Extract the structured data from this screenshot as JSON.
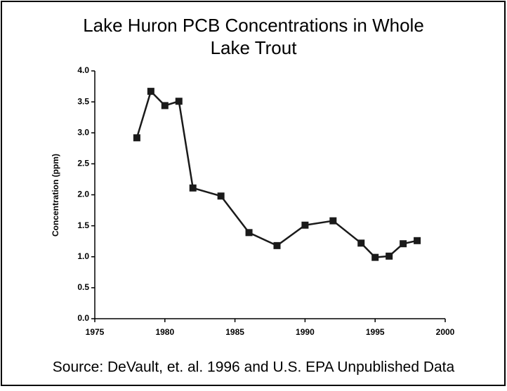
{
  "chart_data": {
    "type": "line",
    "title": [
      "Lake Huron PCB Concentrations in Whole",
      "Lake Trout"
    ],
    "y_label": "Concentration (ppm)",
    "source": "Source: DeVault, et. al. 1996 and U.S. EPA Unpublished Data",
    "x": [
      1978,
      1979,
      1980,
      1981,
      1982,
      1984,
      1986,
      1988,
      1990,
      1992,
      1994,
      1995,
      1996,
      1997,
      1998
    ],
    "series": [
      {
        "color": "#1a1a1a",
        "values": [
          2.92,
          3.67,
          3.44,
          3.51,
          2.11,
          1.98,
          1.39,
          1.18,
          1.51,
          1.58,
          1.22,
          0.99,
          1.01,
          1.21,
          1.26
        ]
      }
    ],
    "xlim": [
      1975,
      2000
    ],
    "xticks": [
      1975,
      1980,
      1985,
      1990,
      1995,
      2000
    ],
    "ylim": [
      0,
      4
    ],
    "yticks": [
      {
        "value": 0,
        "label": "0.0"
      },
      {
        "value": 0.5,
        "label": "0.5"
      },
      {
        "value": 1,
        "label": "1.0"
      },
      {
        "value": 1.5,
        "label": "1.5"
      },
      {
        "value": 2,
        "label": "2.0"
      },
      {
        "value": 2.5,
        "label": "2.5"
      },
      {
        "value": 3,
        "label": "3.0"
      },
      {
        "value": 3.5,
        "label": "3.5"
      },
      {
        "value": 4,
        "label": "4.0"
      }
    ],
    "grid": false
  }
}
